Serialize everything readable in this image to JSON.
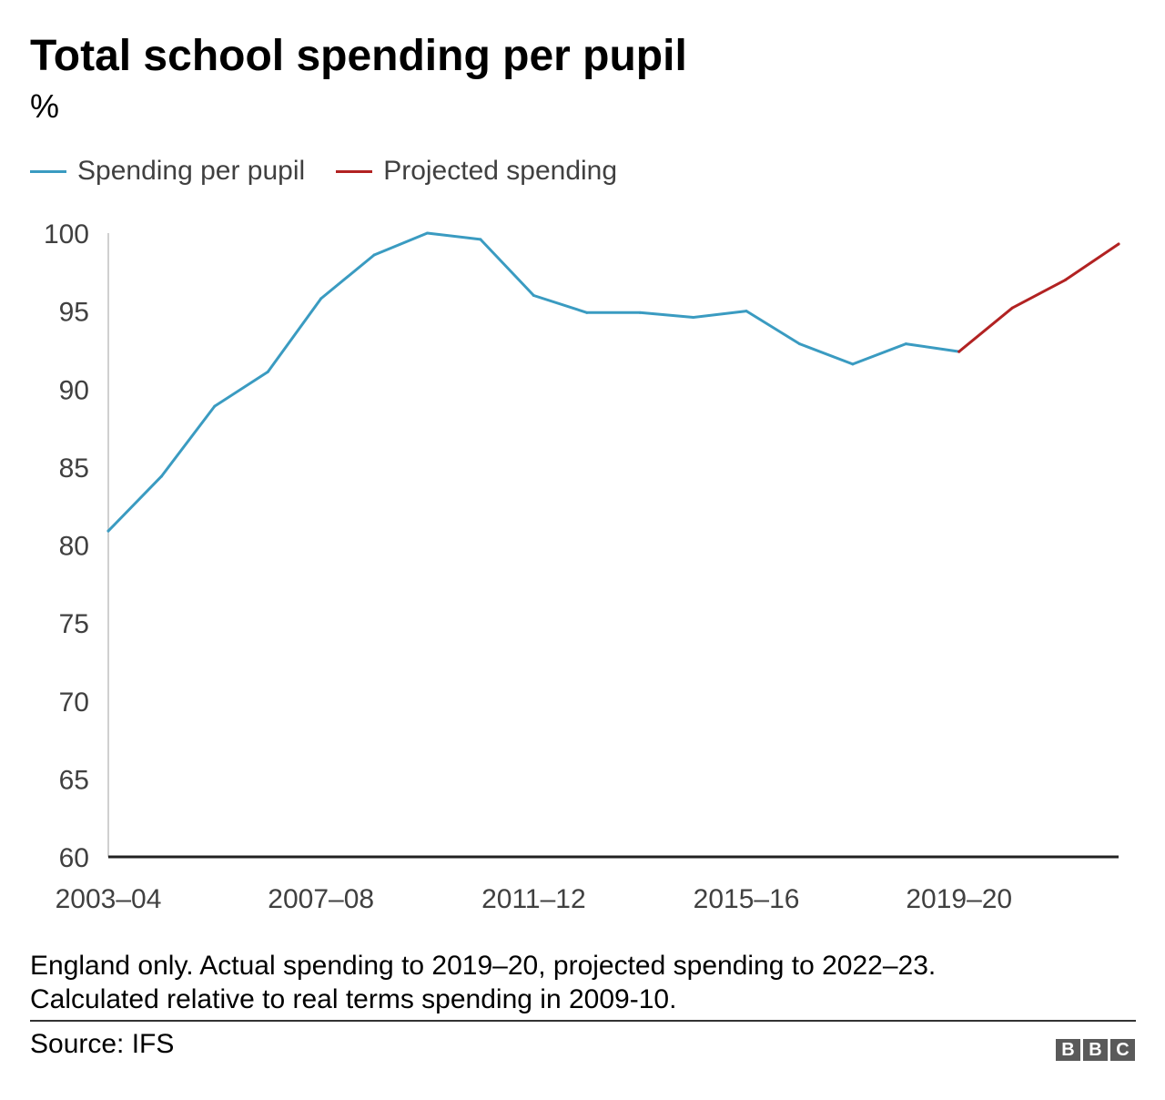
{
  "title": "Total school spending per pupil",
  "subtitle": "%",
  "legend": [
    {
      "label": "Spending per pupil",
      "color": "#3a9bc1"
    },
    {
      "label": "Projected spending",
      "color": "#b22222"
    }
  ],
  "footnote": {
    "line1": "England only. Actual spending to 2019–20, projected spending to 2022–23.",
    "line2": "Calculated relative to real terms spending in 2009-10."
  },
  "source": "Source: IFS",
  "logo": [
    "B",
    "B",
    "C"
  ],
  "chart_data": {
    "type": "line",
    "title": "Total school spending per pupil",
    "ylabel": "%",
    "xlabel": "",
    "ylim": [
      60,
      100
    ],
    "yticks": [
      100,
      95,
      90,
      85,
      80,
      75,
      70,
      65,
      60
    ],
    "x": [
      "2003–04",
      "2004–05",
      "2005–06",
      "2006–07",
      "2007–08",
      "2008–09",
      "2009–10",
      "2010–11",
      "2011–12",
      "2012–13",
      "2013–14",
      "2014–15",
      "2015–16",
      "2016–17",
      "2017–18",
      "2018–19",
      "2019–20",
      "2020–21",
      "2021–22",
      "2022–23"
    ],
    "xticks_shown": [
      "2003–04",
      "2007–08",
      "2011–12",
      "2015–16",
      "2019–20"
    ],
    "series": [
      {
        "name": "Spending per pupil",
        "color": "#3a9bc1",
        "x": [
          "2003–04",
          "2004–05",
          "2005–06",
          "2006–07",
          "2007–08",
          "2008–09",
          "2009–10",
          "2010–11",
          "2011–12",
          "2012–13",
          "2013–14",
          "2014–15",
          "2015–16",
          "2016–17",
          "2017–18",
          "2018–19",
          "2019–20"
        ],
        "values": [
          80.9,
          84.4,
          88.9,
          91.1,
          95.8,
          98.6,
          100.0,
          99.6,
          96.0,
          94.9,
          94.9,
          94.6,
          95.0,
          92.9,
          91.6,
          92.9,
          92.4
        ]
      },
      {
        "name": "Projected spending",
        "color": "#b22222",
        "x": [
          "2019–20",
          "2020–21",
          "2021–22",
          "2022–23"
        ],
        "values": [
          92.4,
          95.2,
          97.0,
          99.3
        ]
      }
    ],
    "grid": false,
    "legend_position": "top-left"
  }
}
